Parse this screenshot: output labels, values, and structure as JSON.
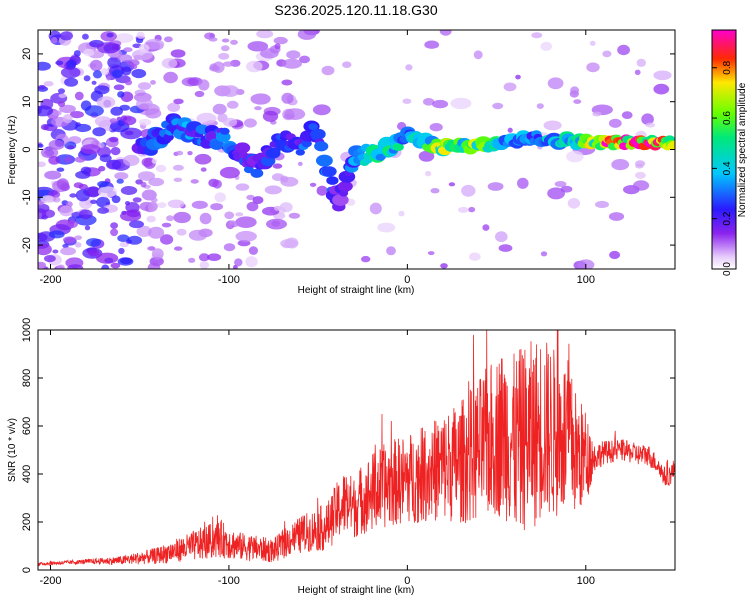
{
  "title": "S236.2025.120.11.18.G30",
  "colors": {
    "snr_line": "#ee2222",
    "frame": "#000000",
    "background": "#ffffff"
  },
  "chart_data": [
    {
      "type": "heatmap",
      "title": "S236.2025.120.11.18.G30",
      "xlabel": "Height of straight line (km)",
      "ylabel": "Frequency (Hz)",
      "xlim": [
        -207,
        150
      ],
      "ylim": [
        -25,
        25
      ],
      "x_ticks": [
        -200,
        -100,
        0,
        100
      ],
      "x_tick_labels": [
        "-200",
        "-100",
        "0",
        "100"
      ],
      "y_ticks": [
        -20,
        -10,
        0,
        10,
        20
      ],
      "y_tick_labels": [
        "-20",
        "-10",
        "0",
        "10",
        "20"
      ],
      "colorbar": {
        "label": "Normalized spectral amplitude",
        "range": [
          0.0,
          0.95
        ],
        "ticks": [
          0.0,
          0.2,
          0.4,
          0.6,
          0.8
        ],
        "tick_labels": [
          "0.0",
          "0.2",
          "0.4",
          "0.6",
          "0.8"
        ],
        "colormap": "rainbow (white-violet-blue-cyan-green-yellow-red-magenta)"
      },
      "ridge": [
        {
          "x": -145,
          "f": 1.0,
          "amp": 0.25
        },
        {
          "x": -130,
          "f": 5.0,
          "amp": 0.35
        },
        {
          "x": -115,
          "f": 3.0,
          "amp": 0.3
        },
        {
          "x": -100,
          "f": 2.0,
          "amp": 0.3
        },
        {
          "x": -85,
          "f": -4.0,
          "amp": 0.25
        },
        {
          "x": -70,
          "f": 2.0,
          "amp": 0.3
        },
        {
          "x": -60,
          "f": 0.0,
          "amp": 0.3
        },
        {
          "x": -52,
          "f": 4.0,
          "amp": 0.25
        },
        {
          "x": -45,
          "f": -5.0,
          "amp": 0.3
        },
        {
          "x": -38,
          "f": -11.0,
          "amp": 0.2
        },
        {
          "x": -30,
          "f": -2.0,
          "amp": 0.35
        },
        {
          "x": -20,
          "f": -1.0,
          "amp": 0.45
        },
        {
          "x": -10,
          "f": 0.5,
          "amp": 0.55
        },
        {
          "x": 0,
          "f": 3.0,
          "amp": 0.4
        },
        {
          "x": 10,
          "f": 1.5,
          "amp": 0.5
        },
        {
          "x": 20,
          "f": 0.5,
          "amp": 0.7
        },
        {
          "x": 30,
          "f": 1.0,
          "amp": 0.55
        },
        {
          "x": 40,
          "f": 0.5,
          "amp": 0.65
        },
        {
          "x": 55,
          "f": 1.5,
          "amp": 0.45
        },
        {
          "x": 70,
          "f": 2.5,
          "amp": 0.4
        },
        {
          "x": 85,
          "f": 2.0,
          "amp": 0.45
        },
        {
          "x": 100,
          "f": 1.5,
          "amp": 0.6
        },
        {
          "x": 110,
          "f": 1.5,
          "amp": 0.9
        },
        {
          "x": 125,
          "f": 1.5,
          "amp": 0.9
        },
        {
          "x": 140,
          "f": 1.5,
          "amp": 0.85
        },
        {
          "x": 150,
          "f": 1.5,
          "amp": 0.85
        }
      ]
    },
    {
      "type": "line",
      "xlabel": "Height of straight line (km)",
      "ylabel": "SNR (10 * v/v)",
      "xlim": [
        -207,
        150
      ],
      "ylim": [
        0,
        1000
      ],
      "x_ticks": [
        -200,
        -100,
        0,
        100
      ],
      "x_tick_labels": [
        "-200",
        "-100",
        "0",
        "100"
      ],
      "y_ticks": [
        0,
        200,
        400,
        600,
        800,
        1000
      ],
      "y_tick_labels": [
        "0",
        "200",
        "400",
        "600",
        "800",
        "1000"
      ],
      "series": [
        {
          "color": "#ee2222",
          "x": [
            -207,
            -180,
            -160,
            -140,
            -125,
            -115,
            -105,
            -95,
            -85,
            -75,
            -65,
            -55,
            -45,
            -40,
            -35,
            -30,
            -25,
            -20,
            -10,
            0,
            10,
            20,
            30,
            40,
            50,
            55,
            60,
            65,
            70,
            75,
            80,
            85,
            90,
            95,
            100,
            105,
            110,
            120,
            130,
            135,
            140,
            145,
            150
          ],
          "y": [
            25,
            35,
            40,
            60,
            90,
            110,
            130,
            100,
            90,
            80,
            130,
            160,
            180,
            240,
            280,
            260,
            300,
            320,
            360,
            380,
            400,
            430,
            450,
            500,
            560,
            580,
            520,
            550,
            560,
            600,
            580,
            560,
            550,
            480,
            470,
            470,
            490,
            500,
            480,
            480,
            440,
            380,
            420
          ],
          "envelope": [
            6,
            10,
            18,
            35,
            55,
            70,
            80,
            60,
            55,
            50,
            70,
            85,
            100,
            120,
            140,
            130,
            150,
            170,
            180,
            190,
            200,
            230,
            260,
            300,
            340,
            370,
            380,
            390,
            400,
            390,
            370,
            350,
            330,
            260,
            200,
            60,
            50,
            45,
            45,
            45,
            40,
            40,
            50
          ]
        }
      ]
    }
  ]
}
